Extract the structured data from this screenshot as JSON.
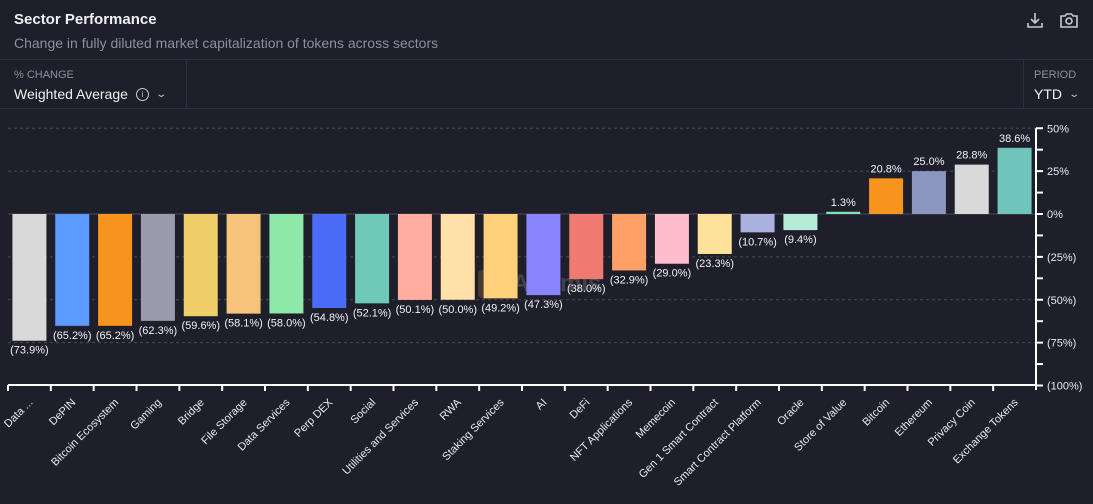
{
  "header": {
    "title": "Sector Performance",
    "subtitle": "Change in fully diluted market capitalization of tokens across sectors"
  },
  "controls": {
    "change_label": "% CHANGE",
    "change_value": "Weighted Average",
    "period_label": "PERIOD",
    "period_value": "YTD"
  },
  "watermark": "Artemis",
  "chart_data": {
    "type": "bar",
    "title": "Sector Performance",
    "ylabel": "% Change",
    "ylim": [
      -100,
      50
    ],
    "yticks": [
      50,
      25,
      0,
      -25,
      -50,
      -75,
      -100
    ],
    "ytick_labels": [
      "50%",
      "25%",
      "0%",
      "(25%)",
      "(50%)",
      "(75%)",
      "(100%)"
    ],
    "categories": [
      "Data ...",
      "DePIN",
      "Bitcoin Ecosystem",
      "Gaming",
      "Bridge",
      "File Storage",
      "Data Services",
      "Perp DEX",
      "Social",
      "Utilities and Services",
      "RWA",
      "Staking Services",
      "AI",
      "DeFi",
      "NFT Applications",
      "Memecoin",
      "Gen 1 Smart Contract",
      "Smart Contract Platform",
      "Oracle",
      "Store of Value",
      "Bitcoin",
      "Ethereum",
      "Privacy Coin",
      "Exchange Tokens"
    ],
    "values": [
      -73.9,
      -65.2,
      -65.2,
      -62.3,
      -59.6,
      -58.1,
      -58.0,
      -54.8,
      -52.1,
      -50.1,
      -50.0,
      -49.2,
      -47.3,
      -38.0,
      -32.9,
      -29.0,
      -23.3,
      -10.7,
      -9.4,
      1.3,
      20.8,
      25.0,
      28.8,
      38.6
    ],
    "labels": [
      "(73.9%)",
      "(65.2%)",
      "(65.2%)",
      "(62.3%)",
      "(59.6%)",
      "(58.1%)",
      "(58.0%)",
      "(54.8%)",
      "(52.1%)",
      "(50.1%)",
      "(50.0%)",
      "(49.2%)",
      "(47.3%)",
      "(38.0%)",
      "(32.9%)",
      "(29.0%)",
      "(23.3%)",
      "(10.7%)",
      "(9.4%)",
      "1.3%",
      "20.8%",
      "25.0%",
      "28.8%",
      "38.6%"
    ],
    "colors": [
      "#d9d9d9",
      "#5b9bff",
      "#f7941d",
      "#9b9aad",
      "#f0cf6a",
      "#f5c47a",
      "#8ee8a8",
      "#4a6cf7",
      "#6fc9b8",
      "#ffada0",
      "#ffe0a8",
      "#ffd07a",
      "#8a85ff",
      "#ee7a72",
      "#ffa066",
      "#ffbccb",
      "#ffe29a",
      "#aab0e0",
      "#b4ecd8",
      "#7fe0b0",
      "#f7941d",
      "#8d96c0",
      "#d9d9d9",
      "#6fc4bb"
    ]
  }
}
